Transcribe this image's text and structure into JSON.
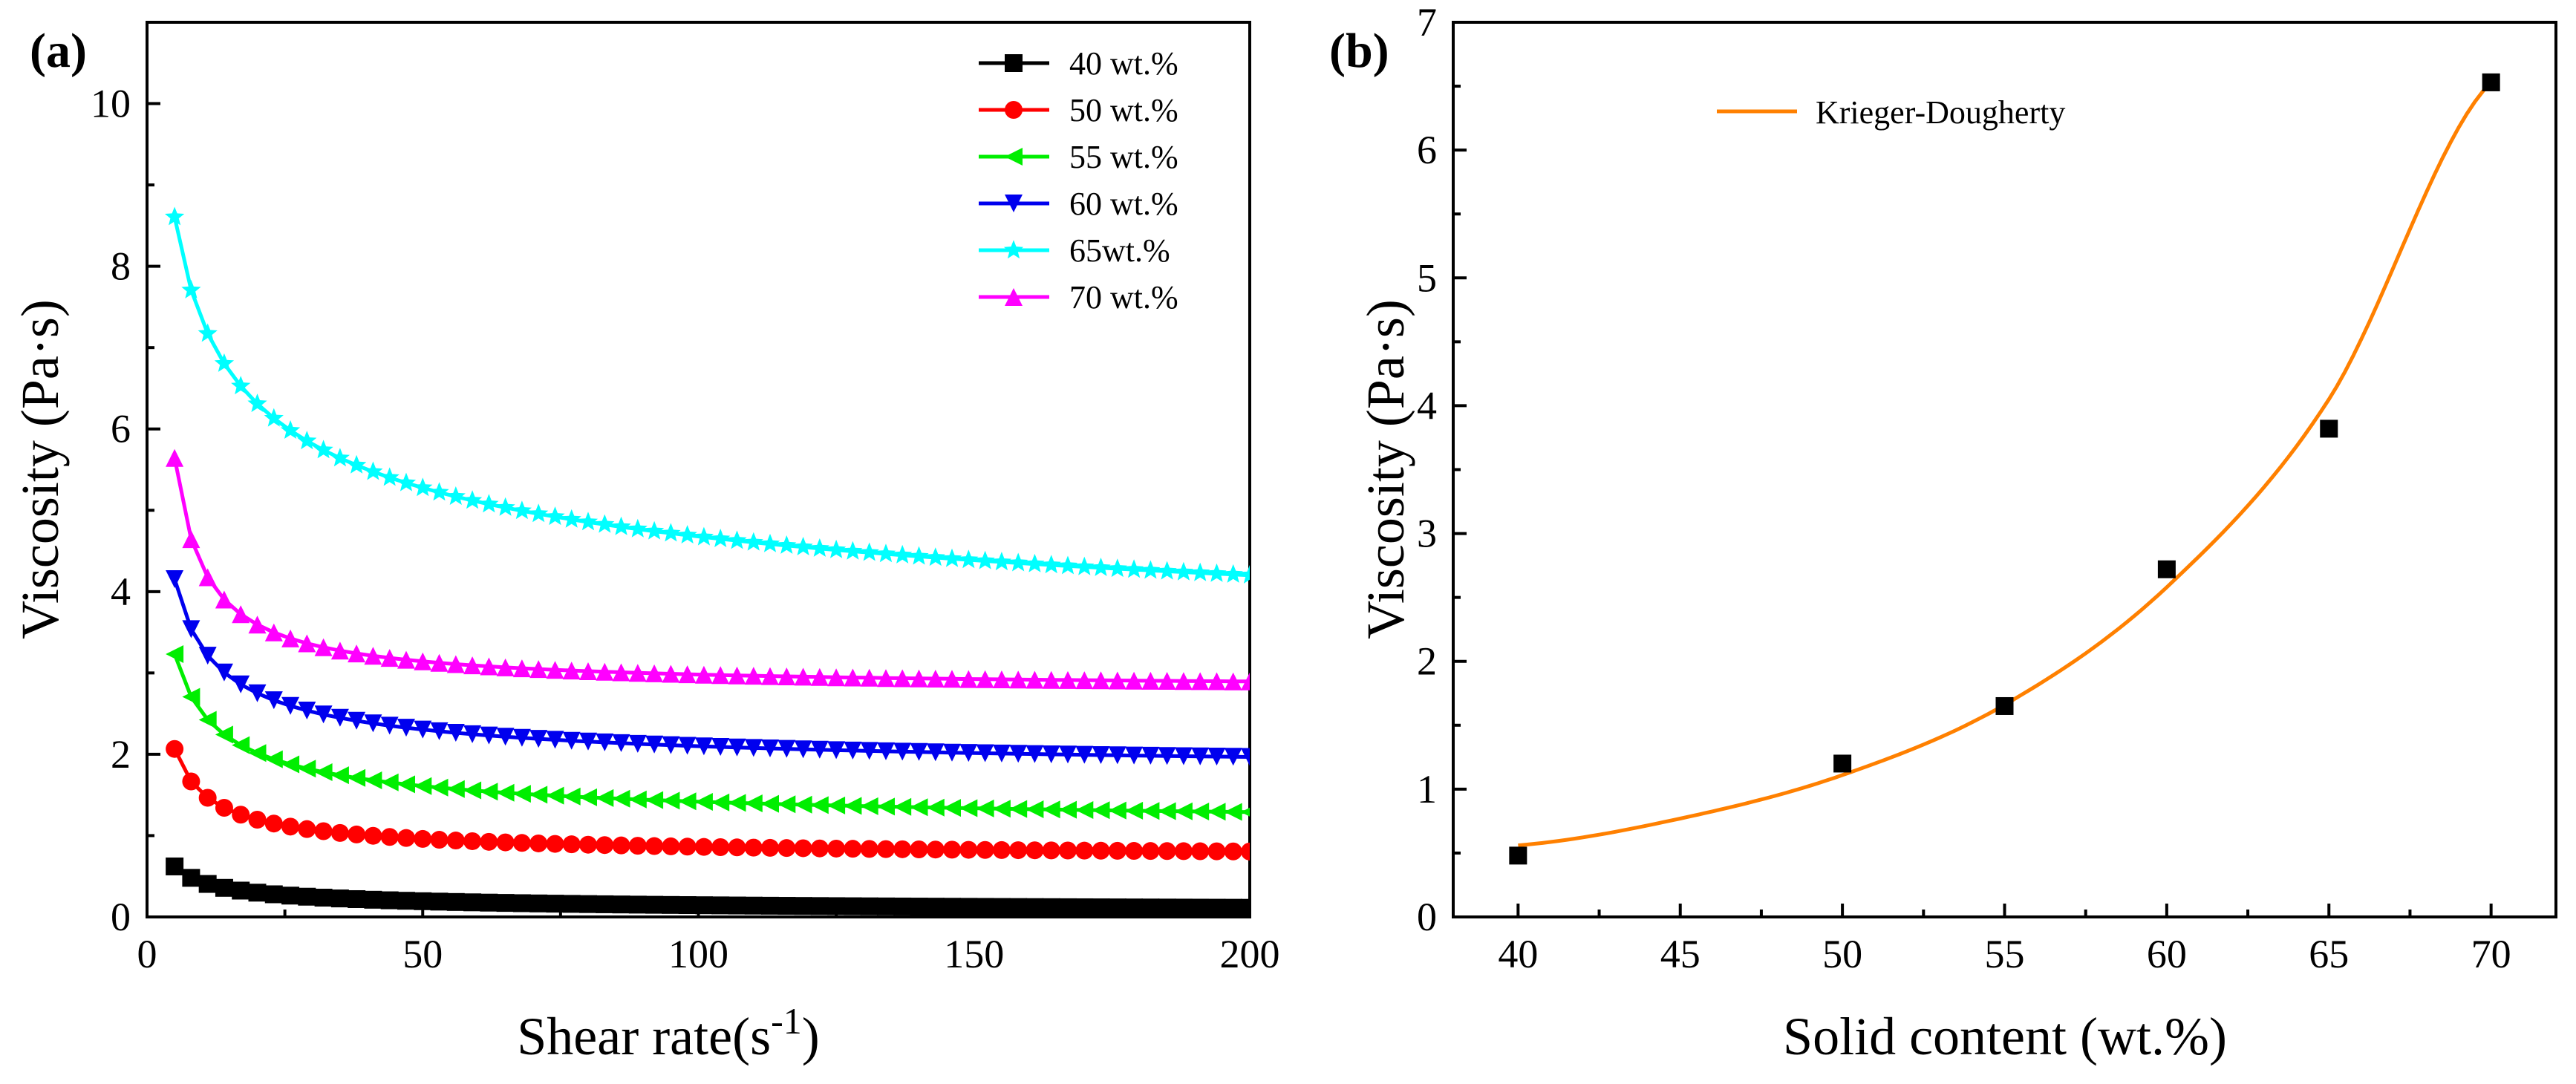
{
  "chart_data": [
    {
      "type": "line",
      "panel_label": "(a)",
      "xlabel": "Shear rate(s",
      "xlabel_exponent": "-1",
      "xlabel_close": ")",
      "ylabel": "Viscosity (Pa·s)",
      "xlim": [
        0,
        200
      ],
      "ylim": [
        0,
        11
      ],
      "xticks": [
        0,
        50,
        100,
        150,
        200
      ],
      "yticks": [
        0,
        2,
        4,
        6,
        8,
        10
      ],
      "legend_position": "top-right",
      "series": [
        {
          "name": "40 wt.%",
          "color": "#000000",
          "marker": "square",
          "model": {
            "a": 1.5,
            "n": 0.6,
            "c": 0.05
          }
        },
        {
          "name": "50 wt.%",
          "color": "#ff0000",
          "marker": "circle",
          "model": {
            "a": 4.5,
            "n": 0.75,
            "c": 0.72
          }
        },
        {
          "name": "55 wt.%",
          "color": "#00ee00",
          "marker": "triangle-left",
          "model": {
            "a": 5.6,
            "n": 0.58,
            "c": 1.03
          }
        },
        {
          "name": "60 wt.%",
          "color": "#0000ee",
          "marker": "triangle-down",
          "model": {
            "a": 6.6,
            "n": 0.62,
            "c": 1.72
          }
        },
        {
          "name": "65wt.%",
          "color": "#00ffff",
          "marker": "star",
          "model": {
            "a": 10.64,
            "n": 0.33,
            "c": 2.35
          }
        },
        {
          "name": "70 wt.%",
          "color": "#ff00ff",
          "marker": "triangle-up",
          "model": {
            "a": 12.5,
            "n": 0.92,
            "c": 2.8
          }
        }
      ],
      "x_samples": {
        "start": 5,
        "end": 200,
        "step": 3
      }
    },
    {
      "type": "scatter",
      "panel_label": "(b)",
      "xlabel": "Solid content (wt.%)",
      "ylabel": "Viscosity (Pa·s)",
      "xlim": [
        38,
        72
      ],
      "ylim": [
        0,
        7
      ],
      "xticks": [
        40,
        45,
        50,
        55,
        60,
        65,
        70
      ],
      "yticks": [
        0,
        1,
        2,
        3,
        4,
        5,
        6,
        7
      ],
      "points": [
        {
          "x": 40,
          "y": 0.48
        },
        {
          "x": 50,
          "y": 1.2
        },
        {
          "x": 55,
          "y": 1.65
        },
        {
          "x": 60,
          "y": 2.72
        },
        {
          "x": 65,
          "y": 3.82
        },
        {
          "x": 70,
          "y": 6.53
        }
      ],
      "fit": {
        "name": "Krieger-Dougherty",
        "color": "#ff8000",
        "x_range": [
          40,
          70
        ],
        "curve": [
          [
            40,
            0.56
          ],
          [
            45,
            0.77
          ],
          [
            50,
            1.11
          ],
          [
            55,
            1.66
          ],
          [
            60,
            2.58
          ],
          [
            65,
            4.05
          ],
          [
            70,
            6.53
          ]
        ]
      },
      "legend_position": "top-left"
    }
  ]
}
